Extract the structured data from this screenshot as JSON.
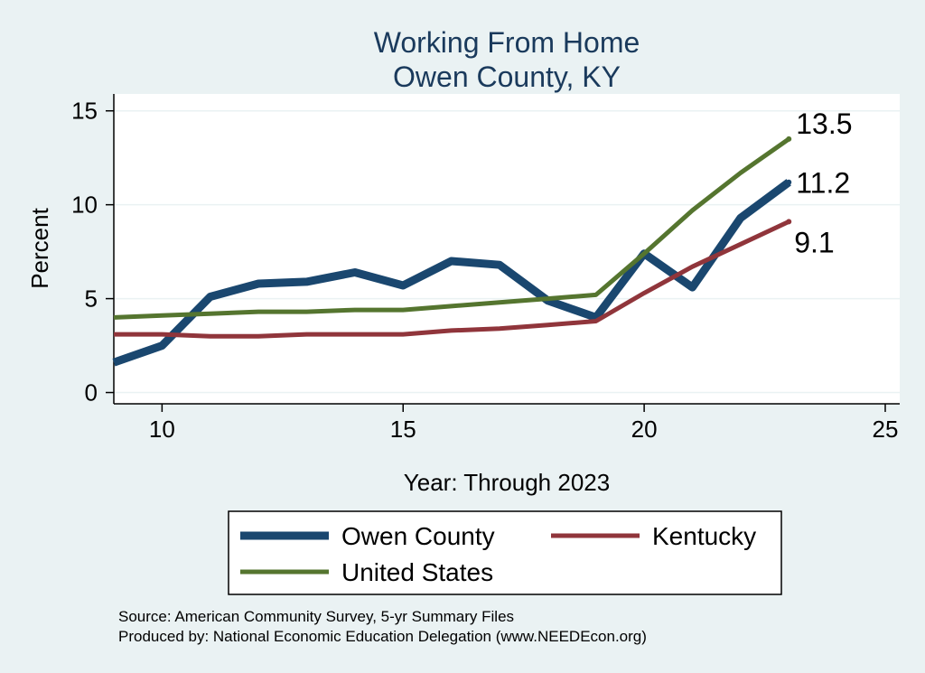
{
  "chart_data": {
    "type": "line",
    "title": [
      "Working From Home",
      "Owen County, KY"
    ],
    "xlabel": "Year: Through 2023",
    "ylabel": "Percent",
    "xlim": [
      9,
      25.3
    ],
    "ylim": [
      -0.6,
      15.9
    ],
    "xticks": [
      10,
      15,
      20,
      25
    ],
    "yticks": [
      0,
      5,
      10,
      15
    ],
    "x": [
      9,
      10,
      11,
      12,
      13,
      14,
      15,
      16,
      17,
      18,
      19,
      20,
      21,
      22,
      23
    ],
    "series": [
      {
        "name": "Owen County",
        "color": "#1a476f",
        "values": [
          1.6,
          2.5,
          5.1,
          5.8,
          5.9,
          6.4,
          5.7,
          7.0,
          6.8,
          4.9,
          4.0,
          7.4,
          5.6,
          9.3,
          11.2
        ],
        "end_label": "11.2"
      },
      {
        "name": "Kentucky",
        "color": "#90353b",
        "values": [
          3.1,
          3.1,
          3.0,
          3.0,
          3.1,
          3.1,
          3.1,
          3.3,
          3.4,
          3.6,
          3.8,
          5.3,
          6.7,
          7.9,
          9.1
        ],
        "end_label": "9.1"
      },
      {
        "name": "United States",
        "color": "#55752f",
        "values": [
          4.0,
          4.1,
          4.2,
          4.3,
          4.3,
          4.4,
          4.4,
          4.6,
          4.8,
          5.0,
          5.2,
          7.4,
          9.7,
          11.7,
          13.5
        ],
        "end_label": "13.5"
      }
    ],
    "grid": true,
    "legend_position": "bottom"
  },
  "footnotes": [
    "Source: American Community Survey, 5-yr Summary Files",
    "Produced by: National Economic Education Delegation (www.NEEDEcon.org)"
  ]
}
